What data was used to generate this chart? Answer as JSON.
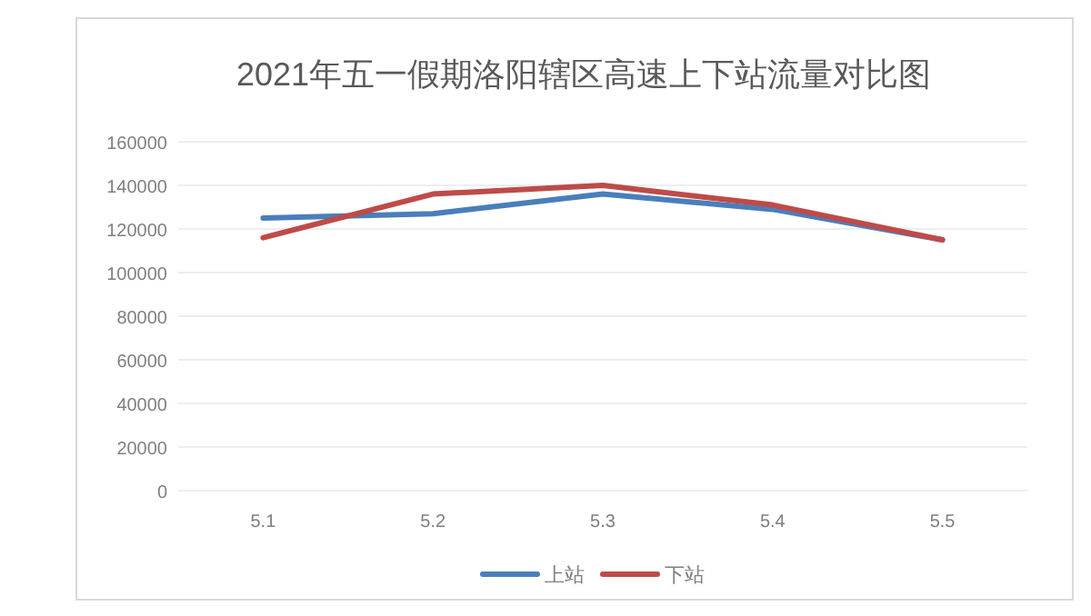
{
  "chart_data": {
    "type": "line",
    "title": "2021年五一假期洛阳辖区高速上下站流量对比图",
    "categories": [
      "5.1",
      "5.2",
      "5.3",
      "5.4",
      "5.5"
    ],
    "series": [
      {
        "name": "上站",
        "color": "#4a7ebb",
        "values": [
          125000,
          127000,
          136000,
          129000,
          115000
        ]
      },
      {
        "name": "下站",
        "color": "#be4b48",
        "values": [
          116000,
          136000,
          140000,
          131000,
          115000
        ]
      }
    ],
    "ylim": [
      0,
      160000
    ],
    "yticks": [
      0,
      20000,
      40000,
      60000,
      80000,
      100000,
      120000,
      140000,
      160000
    ],
    "grid": "y",
    "legend": "bottom",
    "marker": "none",
    "line_style": "solid"
  }
}
